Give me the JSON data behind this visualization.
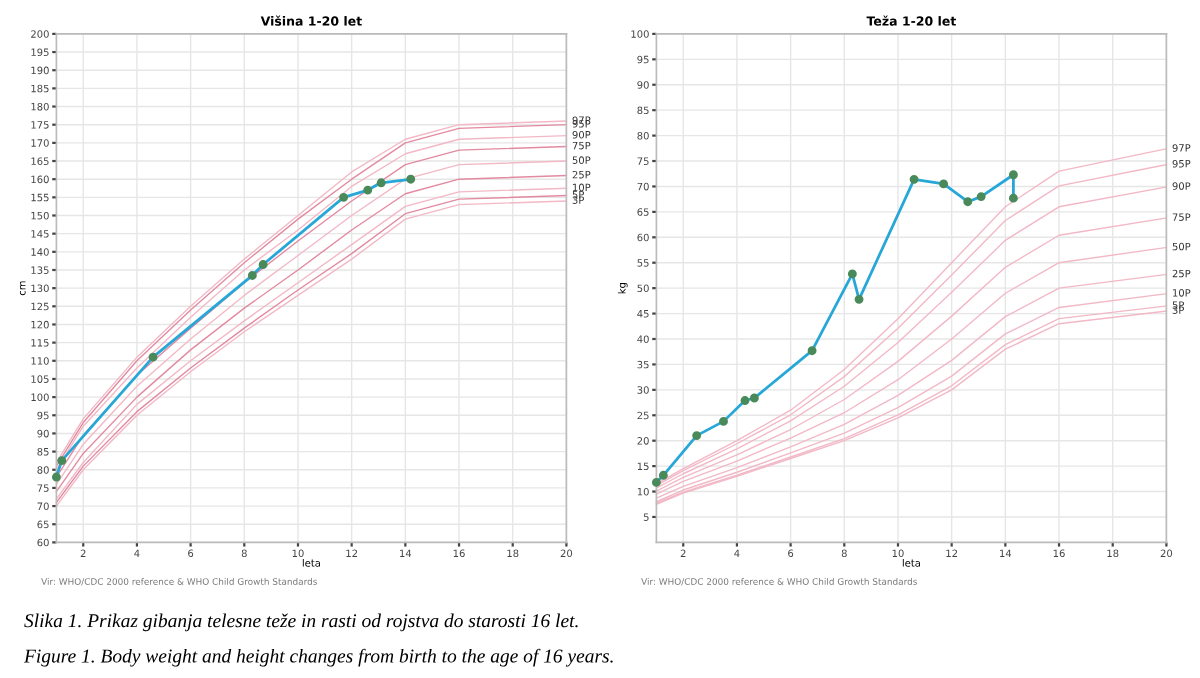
{
  "chart_data": [
    {
      "type": "line",
      "title": "Višina 1-20 let",
      "xlabel": "leta",
      "ylabel": "cm",
      "xlim": [
        1,
        20
      ],
      "xticks": [
        2,
        4,
        6,
        8,
        10,
        12,
        14,
        16,
        18,
        20
      ],
      "ylim": [
        60,
        200
      ],
      "yticks": [
        60,
        65,
        70,
        75,
        80,
        85,
        90,
        95,
        100,
        105,
        110,
        115,
        120,
        125,
        130,
        135,
        140,
        145,
        150,
        155,
        160,
        165,
        170,
        175,
        180,
        185,
        190,
        195,
        200
      ],
      "grid": true,
      "legend": false,
      "series": [
        {
          "name": "97P",
          "color": "#f2b8c6",
          "marker": "none",
          "x": [
            1,
            2,
            4,
            6,
            8,
            10,
            12,
            14,
            16,
            20
          ],
          "values": [
            82,
            94,
            111,
            125,
            138,
            150,
            162,
            171,
            175,
            176
          ]
        },
        {
          "name": "95P",
          "color": "#e38aa0",
          "marker": "none",
          "x": [
            1,
            2,
            4,
            6,
            8,
            10,
            12,
            14,
            16,
            20
          ],
          "values": [
            81,
            93,
            110,
            124,
            137,
            149,
            160,
            170,
            174,
            175
          ]
        },
        {
          "name": "90P",
          "color": "#f2b8c6",
          "marker": "none",
          "x": [
            1,
            2,
            4,
            6,
            8,
            10,
            12,
            14,
            16,
            20
          ],
          "values": [
            80,
            92,
            108,
            122,
            135,
            146,
            158,
            167,
            171,
            172
          ]
        },
        {
          "name": "75P",
          "color": "#e38aa0",
          "marker": "none",
          "x": [
            1,
            2,
            4,
            6,
            8,
            10,
            12,
            14,
            16,
            20
          ],
          "values": [
            78,
            89.5,
            106,
            119,
            131.5,
            143,
            154,
            164,
            168,
            169
          ]
        },
        {
          "name": "50P",
          "color": "#f2b8c6",
          "marker": "none",
          "x": [
            1,
            2,
            4,
            6,
            8,
            10,
            12,
            14,
            16,
            20
          ],
          "values": [
            76,
            87,
            103,
            116,
            128,
            139,
            150,
            160,
            164,
            165
          ]
        },
        {
          "name": "25P",
          "color": "#e38aa0",
          "marker": "none",
          "x": [
            1,
            2,
            4,
            6,
            8,
            10,
            12,
            14,
            16,
            20
          ],
          "values": [
            74,
            84.5,
            100,
            113,
            124.5,
            135,
            146,
            156,
            160,
            161
          ]
        },
        {
          "name": "10P",
          "color": "#f2b8c6",
          "marker": "none",
          "x": [
            1,
            2,
            4,
            6,
            8,
            10,
            12,
            14,
            16,
            20
          ],
          "values": [
            72,
            82,
            98,
            110,
            121,
            131.5,
            142,
            152.5,
            156.5,
            157.5
          ]
        },
        {
          "name": "5P",
          "color": "#e38aa0",
          "marker": "none",
          "x": [
            1,
            2,
            4,
            6,
            8,
            10,
            12,
            14,
            16,
            20
          ],
          "values": [
            71,
            81,
            96,
            108,
            119,
            129.5,
            139.5,
            150.5,
            154.5,
            155.5
          ]
        },
        {
          "name": "3P",
          "color": "#f2b8c6",
          "marker": "none",
          "x": [
            1,
            2,
            4,
            6,
            8,
            10,
            12,
            14,
            16,
            20
          ],
          "values": [
            70,
            80,
            95,
            107,
            118,
            128,
            138,
            149,
            153,
            154
          ]
        },
        {
          "color": "#27a7d8",
          "marker": "circle",
          "x": [
            1.0,
            1.2,
            4.6,
            8.3,
            8.7,
            11.7,
            12.6,
            13.1,
            14.2
          ],
          "values": [
            78,
            82.5,
            111,
            133.5,
            136.5,
            155,
            157,
            159,
            160
          ]
        }
      ],
      "annotations": [
        "Vir: WHO/CDC 2000 reference & WHO Child Growth Standards",
        "Slika 1. Prikaz gibanja telesne teže in rasti od rojstva do starosti 16 let.",
        "Figure 1. Body weight and height changes from birth to the age of 16 years."
      ]
    },
    {
      "type": "line",
      "title": "Teža 1-20 let",
      "xlabel": "leta",
      "ylabel": "kg",
      "xlim": [
        1,
        20
      ],
      "xticks": [
        2,
        4,
        6,
        8,
        10,
        12,
        14,
        16,
        18,
        20
      ],
      "ylim": [
        0,
        100
      ],
      "yticks": [
        5,
        10,
        15,
        20,
        25,
        30,
        35,
        40,
        45,
        50,
        55,
        60,
        65,
        70,
        75,
        80,
        85,
        90,
        95,
        100
      ],
      "grid": true,
      "legend": false,
      "series": [
        {
          "name": "97P",
          "color": "#f2b8c6",
          "marker": "none",
          "x": [
            1,
            2,
            4,
            6,
            8,
            10,
            12,
            14,
            16,
            20
          ],
          "values": [
            11.5,
            14.5,
            20,
            26,
            34,
            44,
            55,
            66,
            73,
            77.4
          ]
        },
        {
          "name": "95P",
          "color": "#f2b8c6",
          "marker": "none",
          "x": [
            1,
            2,
            4,
            6,
            8,
            10,
            12,
            14,
            16,
            20
          ],
          "values": [
            11.2,
            14.1,
            19.4,
            25.1,
            32.6,
            42.1,
            52.6,
            63.3,
            70.1,
            74.3
          ]
        },
        {
          "name": "90P",
          "color": "#f2b8c6",
          "marker": "none",
          "x": [
            1,
            2,
            4,
            6,
            8,
            10,
            12,
            14,
            16,
            20
          ],
          "values": [
            10.7,
            13.5,
            18.4,
            23.9,
            30.7,
            39.3,
            49.2,
            59.4,
            66,
            69.9
          ]
        },
        {
          "name": "75P",
          "color": "#f2b8c6",
          "marker": "none",
          "x": [
            1,
            2,
            4,
            6,
            8,
            10,
            12,
            14,
            16,
            20
          ],
          "values": [
            10.1,
            12.8,
            17.2,
            22.2,
            28.1,
            35.6,
            44.5,
            54.1,
            60.4,
            63.8
          ]
        },
        {
          "name": "50P",
          "color": "#f2b8c6",
          "marker": "none",
          "x": [
            1,
            2,
            4,
            6,
            8,
            10,
            12,
            14,
            16,
            20
          ],
          "values": [
            9.5,
            12,
            16,
            20.5,
            25.5,
            32,
            40,
            49,
            55,
            58
          ]
        },
        {
          "name": "25P",
          "color": "#f2b8c6",
          "marker": "none",
          "x": [
            1,
            2,
            4,
            6,
            8,
            10,
            12,
            14,
            16,
            20
          ],
          "values": [
            8.7,
            11,
            14.7,
            18.8,
            23.2,
            28.9,
            35.8,
            44.4,
            50,
            52.7
          ]
        },
        {
          "name": "10P",
          "color": "#f2b8c6",
          "marker": "none",
          "x": [
            1,
            2,
            4,
            6,
            8,
            10,
            12,
            14,
            16,
            20
          ],
          "values": [
            8,
            10.3,
            13.8,
            17.6,
            21.5,
            26.5,
            32.7,
            41,
            46.2,
            48.9
          ]
        },
        {
          "name": "5P",
          "color": "#f2b8c6",
          "marker": "none",
          "x": [
            1,
            2,
            4,
            6,
            8,
            10,
            12,
            14,
            16,
            20
          ],
          "values": [
            7.7,
            9.9,
            13.2,
            16.8,
            20.4,
            25.1,
            30.8,
            38.9,
            44,
            46.5
          ]
        },
        {
          "name": "3P",
          "color": "#f2b8c6",
          "marker": "none",
          "x": [
            1,
            2,
            4,
            6,
            8,
            10,
            12,
            14,
            16,
            20
          ],
          "values": [
            7.5,
            9.7,
            13,
            16.5,
            20,
            24.5,
            30,
            38,
            43,
            45.5
          ]
        },
        {
          "color": "#27a7d8",
          "marker": "circle",
          "x": [
            1.0,
            1.26,
            2.5,
            3.5,
            4.3,
            4.65,
            6.8,
            8.3,
            8.55,
            10.6,
            11.7,
            12.6,
            13.1,
            14.3,
            14.3
          ],
          "values": [
            11.8,
            13.2,
            21,
            23.8,
            27.9,
            28.4,
            37.7,
            52.8,
            47.8,
            71.4,
            70.5,
            67,
            68,
            72.3,
            67.7
          ]
        }
      ],
      "annotations": [
        "Vir: WHO/CDC 2000 reference & WHO Child Growth Standards"
      ]
    }
  ]
}
